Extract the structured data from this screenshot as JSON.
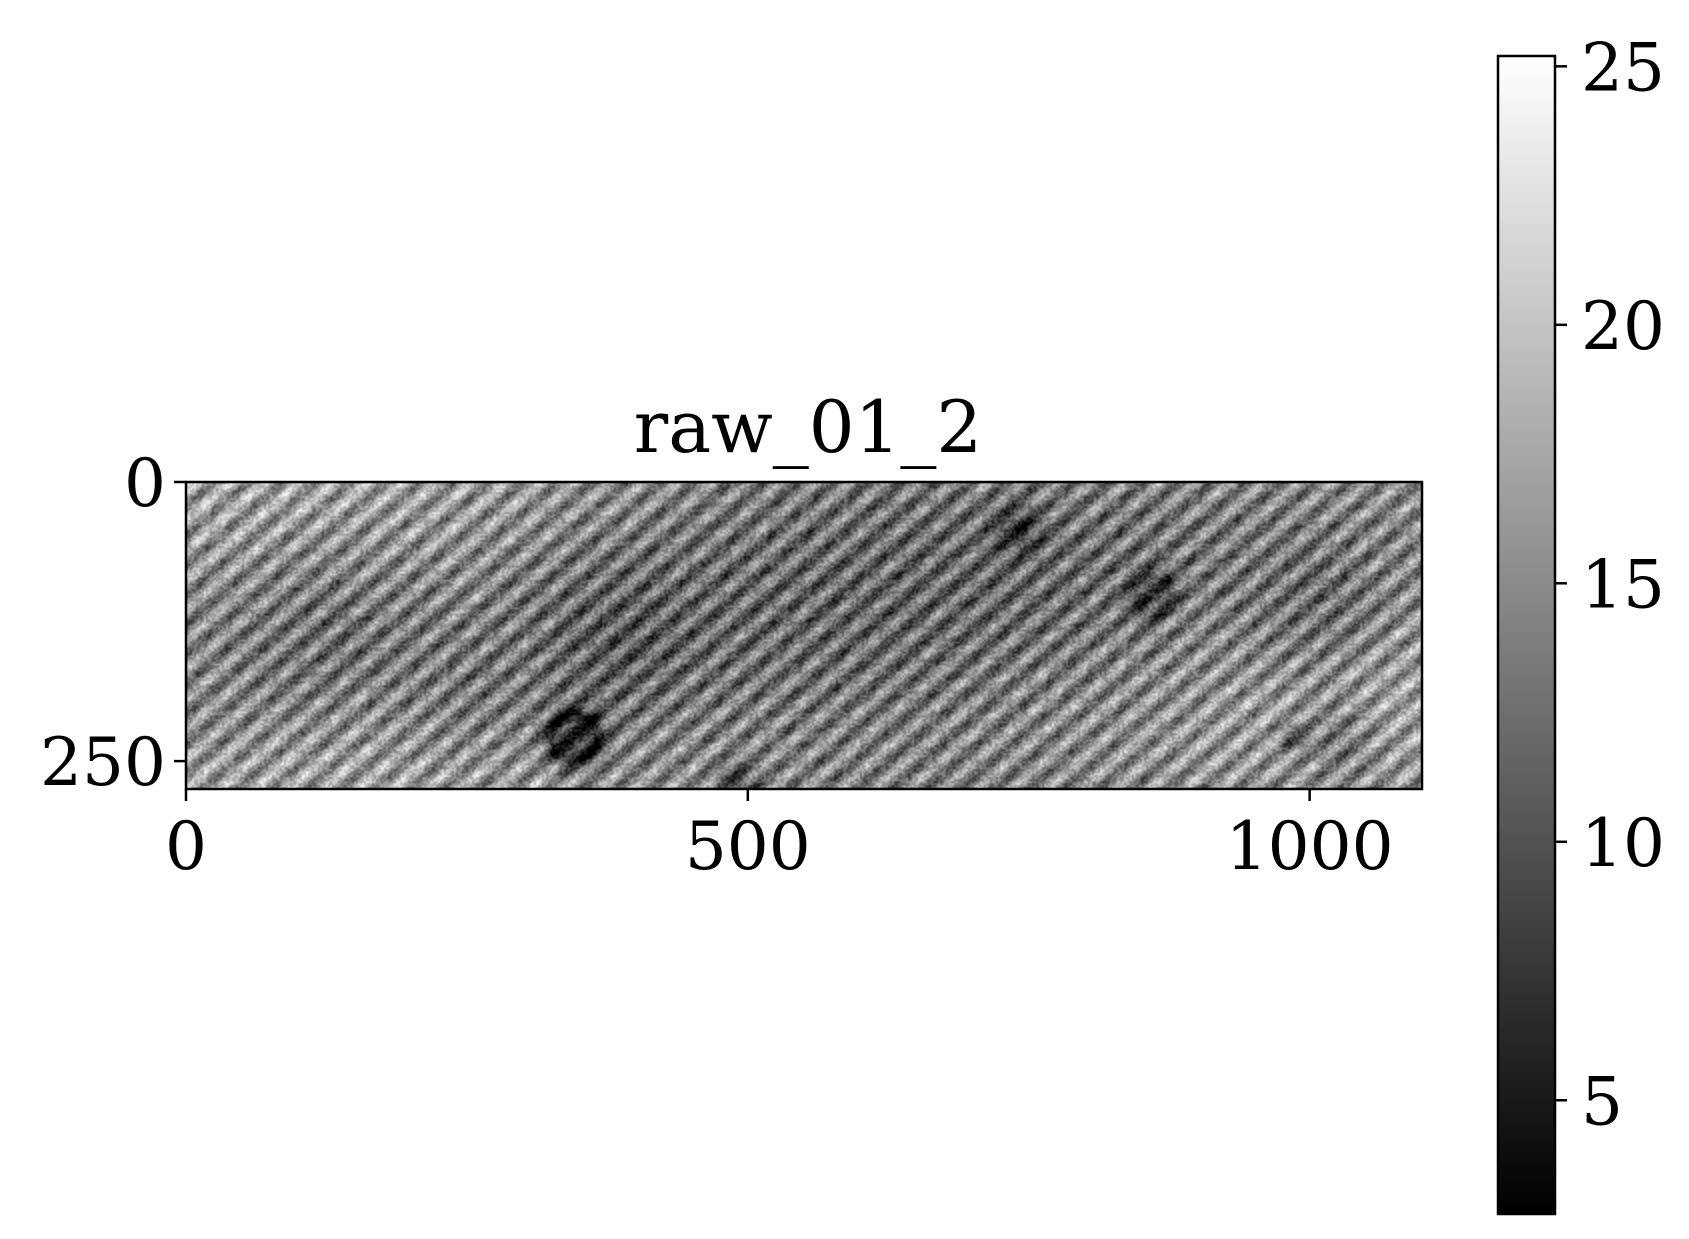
{
  "chart_data": {
    "type": "heatmap",
    "title": "raw_01_2",
    "colormap": "gray",
    "image": {
      "width": 1100,
      "height": 275
    },
    "x_axis": {
      "ticks": [
        0,
        500,
        1000
      ],
      "labels": [
        "0",
        "500",
        "1000"
      ]
    },
    "y_axis": {
      "ticks": [
        0,
        250
      ],
      "labels": [
        "0",
        "250"
      ]
    },
    "colorbar": {
      "range": [
        2.8,
        25.2
      ],
      "ticks": [
        5,
        10,
        15,
        20,
        25
      ],
      "labels": [
        "5",
        "10",
        "15",
        "20",
        "25"
      ]
    },
    "background_level": 14.5,
    "stripe_amplitude": 5.5,
    "noise_amplitude": 3.5,
    "dark_features": [
      {
        "x": 345,
        "y": 228,
        "r": 30,
        "depth": 9,
        "ring": true
      },
      {
        "x": 860,
        "y": 100,
        "r": 24,
        "depth": 5,
        "ring": true
      },
      {
        "x": 740,
        "y": 42,
        "r": 24,
        "depth": 6,
        "ring": false
      },
      {
        "x": 985,
        "y": 228,
        "r": 12,
        "depth": 4,
        "ring": true
      },
      {
        "x": 1025,
        "y": 232,
        "r": 42,
        "depth": 3,
        "ring": false
      },
      {
        "x": 490,
        "y": 268,
        "r": 20,
        "depth": 6,
        "ring": false
      },
      {
        "x": 380,
        "y": 150,
        "r": 80,
        "depth": 2.5,
        "ring": false
      },
      {
        "x": 1010,
        "y": 115,
        "r": 70,
        "depth": 2.5,
        "ring": false
      },
      {
        "x": 120,
        "y": 130,
        "r": 90,
        "depth": 2,
        "ring": false
      },
      {
        "x": 250,
        "y": 200,
        "r": 60,
        "depth": 1.5,
        "ring": false
      }
    ]
  }
}
